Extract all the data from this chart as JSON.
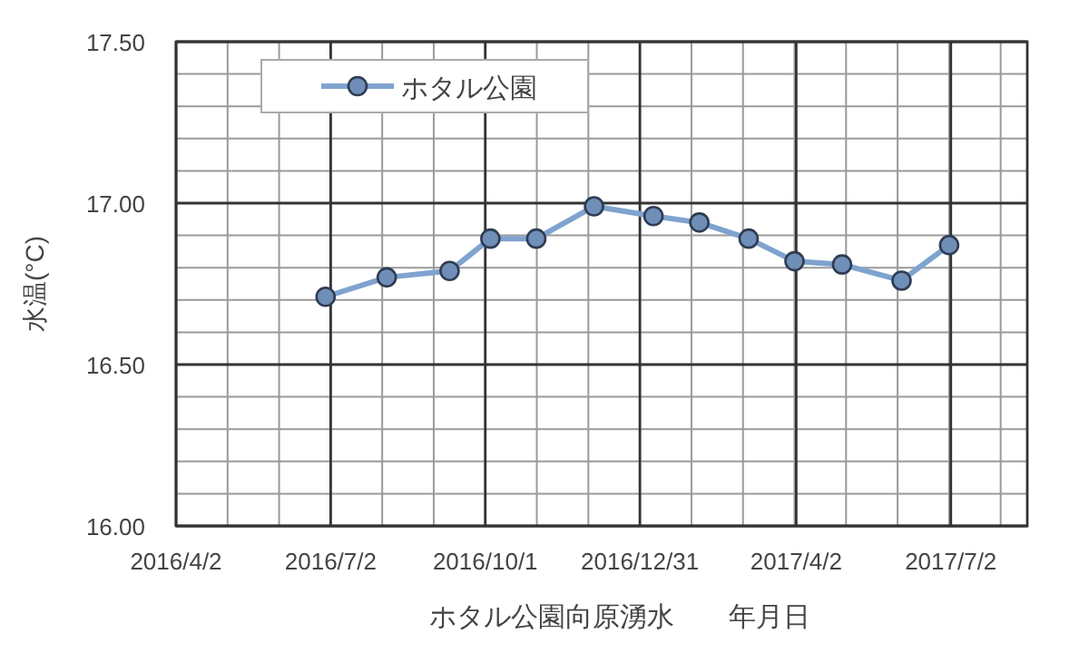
{
  "chart_data": {
    "type": "line",
    "xlabel": "ホタル公園向原湧水　　年月日",
    "ylabel": "水温(°C)",
    "x": [
      "2016-06-29",
      "2016-08-04",
      "2016-09-10",
      "2016-10-04",
      "2016-10-31",
      "2016-12-04",
      "2017-01-08",
      "2017-02-04",
      "2017-03-05",
      "2017-04-01",
      "2017-04-29",
      "2017-06-03",
      "2017-07-01"
    ],
    "series": [
      {
        "name": "ホタル公園",
        "color": "#7fa3cf",
        "values": [
          16.71,
          16.77,
          16.79,
          16.89,
          16.89,
          16.99,
          16.96,
          16.94,
          16.89,
          16.82,
          16.81,
          16.76,
          16.87
        ]
      }
    ],
    "xlim": [
      "2016-04-02",
      "2017-08-16"
    ],
    "xticks": [
      {
        "value": "2016-04-02",
        "label": "2016/4/2"
      },
      {
        "value": "2016-07-02",
        "label": "2016/7/2"
      },
      {
        "value": "2016-10-01",
        "label": "2016/10/1"
      },
      {
        "value": "2016-12-31",
        "label": "2016/12/31"
      },
      {
        "value": "2017-04-02",
        "label": "2017/4/2"
      },
      {
        "value": "2017-07-02",
        "label": "2017/7/2"
      }
    ],
    "ylim": [
      16.0,
      17.5
    ],
    "yticks": [
      {
        "value": 16.0,
        "label": "16.00"
      },
      {
        "value": 16.5,
        "label": "16.50"
      },
      {
        "value": 17.0,
        "label": "17.00"
      },
      {
        "value": 17.5,
        "label": "17.50"
      }
    ],
    "grid": true,
    "legend": "top left",
    "marker": "circle",
    "line_style": "solid"
  }
}
